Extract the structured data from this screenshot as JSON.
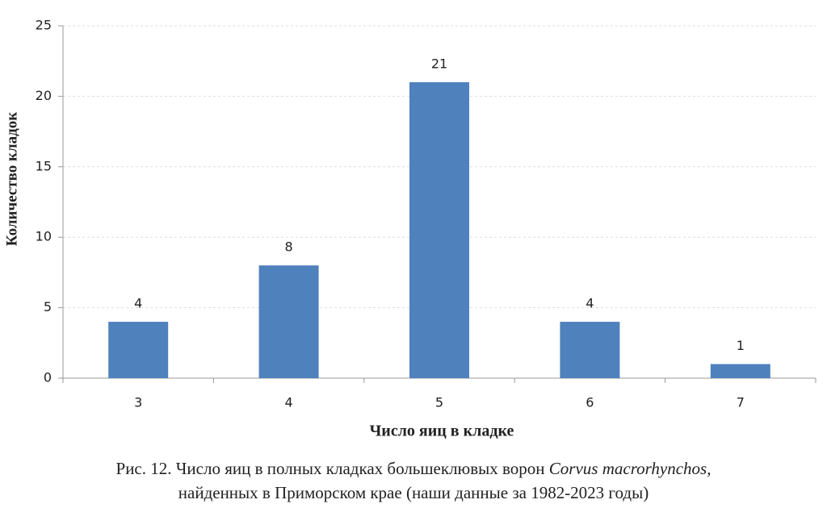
{
  "chart_data": {
    "type": "bar",
    "y_label": "Количество кладок",
    "x_label": "Число яиц в кладке",
    "categories": [
      "3",
      "4",
      "5",
      "6",
      "7"
    ],
    "values": [
      4,
      8,
      21,
      4,
      1
    ],
    "color": "#4f81bd",
    "ylim": [
      0,
      25
    ],
    "yticks": [
      0,
      5,
      10,
      15,
      20,
      25
    ],
    "grid": true,
    "caption": [
      "Рис. 12. Число яиц в полных кладках большеклювых ворон",
      "Corvus macrorhynchos",
      ",",
      "найденных в Приморском крае (наши данные за 1982-2023 годы)"
    ]
  }
}
